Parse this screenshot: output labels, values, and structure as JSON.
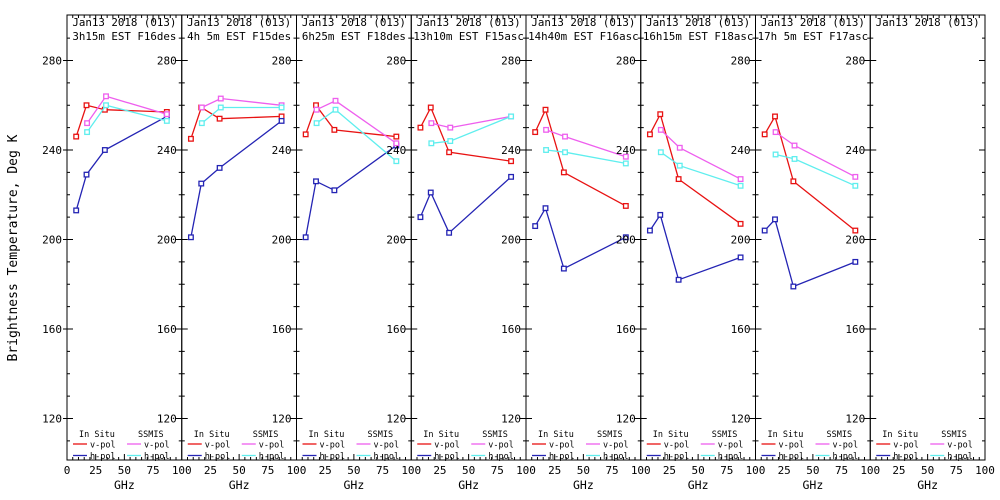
{
  "figure": {
    "ylabel": "Brightness Temperature, Deg K",
    "xlabel": "GHz",
    "y_ticks": [
      120,
      160,
      200,
      240,
      280
    ],
    "x_ticks": [
      0,
      25,
      50,
      75,
      100
    ],
    "xlim": [
      0,
      100
    ],
    "ylim": [
      100,
      300
    ],
    "grid": "off",
    "legend_position": "bottom-inside-each-panel"
  },
  "legend": {
    "group1_header": "In Situ",
    "group2_header": "SSMIS",
    "vpol_label": "v-pol",
    "hpol_label": "h-pol"
  },
  "colors": {
    "insitu_v": "#e81212",
    "insitu_h": "#2424b4",
    "ssmis_v": "#ee5fee",
    "ssmis_h": "#5feeee",
    "axis": "#000000",
    "background": "#ffffff"
  },
  "chart_data": [
    {
      "type": "line",
      "title_line1": "Jan13 2018 (013)",
      "title_line2": "3h15m EST F16des",
      "series": [
        {
          "name": "In Situ v-pol",
          "color_key": "insitu_v",
          "x": [
            8,
            17,
            33,
            87
          ],
          "y": [
            246,
            260,
            258,
            257
          ]
        },
        {
          "name": "In Situ h-pol",
          "color_key": "insitu_h",
          "x": [
            8,
            17,
            33,
            87
          ],
          "y": [
            213,
            229,
            240,
            255
          ]
        },
        {
          "name": "SSMIS v-pol",
          "color_key": "ssmis_v",
          "x": [
            17.5,
            34,
            87
          ],
          "y": [
            252,
            264,
            256
          ]
        },
        {
          "name": "SSMIS h-pol",
          "color_key": "ssmis_h",
          "x": [
            17.5,
            34,
            87
          ],
          "y": [
            248,
            260,
            253
          ]
        }
      ]
    },
    {
      "type": "line",
      "title_line1": "Jan13 2018 (013)",
      "title_line2": "4h 5m EST F15des",
      "series": [
        {
          "name": "In Situ v-pol",
          "color_key": "insitu_v",
          "x": [
            8,
            17,
            33,
            87
          ],
          "y": [
            245,
            259,
            254,
            255
          ]
        },
        {
          "name": "In Situ h-pol",
          "color_key": "insitu_h",
          "x": [
            8,
            17,
            33,
            87
          ],
          "y": [
            201,
            225,
            232,
            253
          ]
        },
        {
          "name": "SSMIS v-pol",
          "color_key": "ssmis_v",
          "x": [
            17.5,
            34,
            87
          ],
          "y": [
            259,
            263,
            260
          ]
        },
        {
          "name": "SSMIS h-pol",
          "color_key": "ssmis_h",
          "x": [
            17.5,
            34,
            87
          ],
          "y": [
            252,
            259,
            259
          ]
        }
      ]
    },
    {
      "type": "line",
      "title_line1": "Jan13 2018 (013)",
      "title_line2": "6h25m EST F18des",
      "series": [
        {
          "name": "In Situ v-pol",
          "color_key": "insitu_v",
          "x": [
            8,
            17,
            33,
            87
          ],
          "y": [
            247,
            260,
            249,
            246
          ]
        },
        {
          "name": "In Situ h-pol",
          "color_key": "insitu_h",
          "x": [
            8,
            17,
            33,
            87
          ],
          "y": [
            201,
            226,
            222,
            242
          ]
        },
        {
          "name": "SSMIS v-pol",
          "color_key": "ssmis_v",
          "x": [
            17.5,
            34,
            87
          ],
          "y": [
            258,
            262,
            243
          ]
        },
        {
          "name": "SSMIS h-pol",
          "color_key": "ssmis_h",
          "x": [
            17.5,
            34,
            87
          ],
          "y": [
            252,
            258,
            235
          ]
        }
      ]
    },
    {
      "type": "line",
      "title_line1": "Jan13 2018 (013)",
      "title_line2": "13h10m EST F15asc",
      "series": [
        {
          "name": "In Situ v-pol",
          "color_key": "insitu_v",
          "x": [
            8,
            17,
            33,
            87
          ],
          "y": [
            250,
            259,
            239,
            235
          ]
        },
        {
          "name": "In Situ h-pol",
          "color_key": "insitu_h",
          "x": [
            8,
            17,
            33,
            87
          ],
          "y": [
            210,
            221,
            203,
            228
          ]
        },
        {
          "name": "SSMIS v-pol",
          "color_key": "ssmis_v",
          "x": [
            17.5,
            34,
            87
          ],
          "y": [
            252,
            250,
            255
          ]
        },
        {
          "name": "SSMIS h-pol",
          "color_key": "ssmis_h",
          "x": [
            17.5,
            34,
            87
          ],
          "y": [
            243,
            244,
            255
          ]
        }
      ]
    },
    {
      "type": "line",
      "title_line1": "Jan13 2018 (013)",
      "title_line2": "14h40m EST F16asc",
      "series": [
        {
          "name": "In Situ v-pol",
          "color_key": "insitu_v",
          "x": [
            8,
            17,
            33,
            87
          ],
          "y": [
            248,
            258,
            230,
            215
          ]
        },
        {
          "name": "In Situ h-pol",
          "color_key": "insitu_h",
          "x": [
            8,
            17,
            33,
            87
          ],
          "y": [
            206,
            214,
            187,
            201
          ]
        },
        {
          "name": "SSMIS v-pol",
          "color_key": "ssmis_v",
          "x": [
            17.5,
            34,
            87
          ],
          "y": [
            249,
            246,
            237
          ]
        },
        {
          "name": "SSMIS h-pol",
          "color_key": "ssmis_h",
          "x": [
            17.5,
            34,
            87
          ],
          "y": [
            240,
            239,
            234
          ]
        }
      ]
    },
    {
      "type": "line",
      "title_line1": "Jan13 2018 (013)",
      "title_line2": "16h15m EST F18asc",
      "series": [
        {
          "name": "In Situ v-pol",
          "color_key": "insitu_v",
          "x": [
            8,
            17,
            33,
            87
          ],
          "y": [
            247,
            256,
            227,
            207
          ]
        },
        {
          "name": "In Situ h-pol",
          "color_key": "insitu_h",
          "x": [
            8,
            17,
            33,
            87
          ],
          "y": [
            204,
            211,
            182,
            192
          ]
        },
        {
          "name": "SSMIS v-pol",
          "color_key": "ssmis_v",
          "x": [
            17.5,
            34,
            87
          ],
          "y": [
            249,
            241,
            227
          ]
        },
        {
          "name": "SSMIS h-pol",
          "color_key": "ssmis_h",
          "x": [
            17.5,
            34,
            87
          ],
          "y": [
            239,
            233,
            224
          ]
        }
      ]
    },
    {
      "type": "line",
      "title_line1": "Jan13 2018 (013)",
      "title_line2": "17h 5m EST F17asc",
      "series": [
        {
          "name": "In Situ v-pol",
          "color_key": "insitu_v",
          "x": [
            8,
            17,
            33,
            87
          ],
          "y": [
            247,
            255,
            226,
            204
          ]
        },
        {
          "name": "In Situ h-pol",
          "color_key": "insitu_h",
          "x": [
            8,
            17,
            33,
            87
          ],
          "y": [
            204,
            209,
            179,
            190
          ]
        },
        {
          "name": "SSMIS v-pol",
          "color_key": "ssmis_v",
          "x": [
            17.5,
            34,
            87
          ],
          "y": [
            248,
            242,
            228
          ]
        },
        {
          "name": "SSMIS h-pol",
          "color_key": "ssmis_h",
          "x": [
            17.5,
            34,
            87
          ],
          "y": [
            238,
            236,
            224
          ]
        }
      ]
    },
    {
      "type": "line",
      "title_line1": "Jan13 2018 (013)",
      "title_line2": "",
      "series": []
    }
  ]
}
